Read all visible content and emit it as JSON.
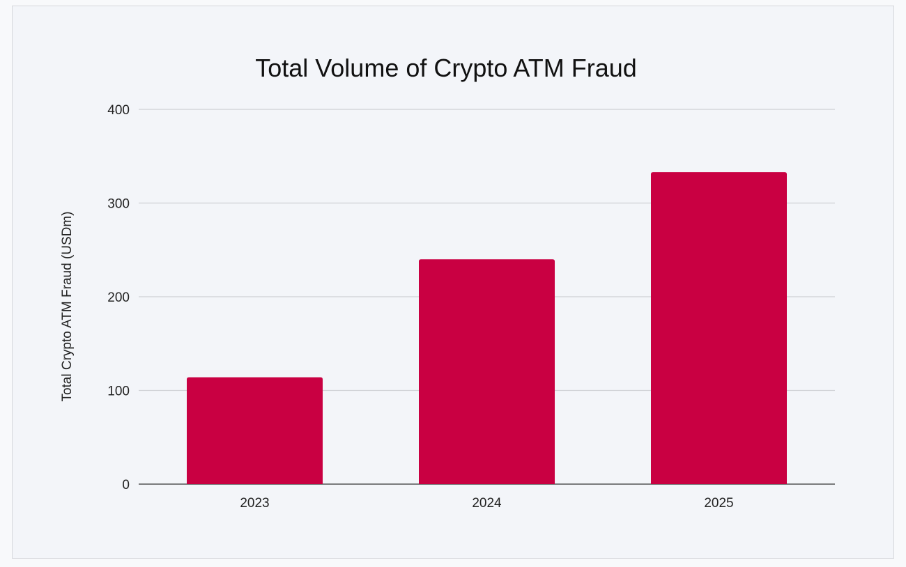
{
  "chart_data": {
    "type": "bar",
    "title": "Total Volume of Crypto ATM Fraud",
    "xlabel": "",
    "ylabel": "Total Crypto ATM Fraud (USDm)",
    "categories": [
      "2023",
      "2024",
      "2025"
    ],
    "values": [
      114,
      240,
      333
    ],
    "ylim": [
      0,
      400
    ],
    "yticks": [
      0,
      100,
      200,
      300,
      400
    ],
    "grid": true,
    "legend": "none",
    "bar_color": "#c90042"
  }
}
